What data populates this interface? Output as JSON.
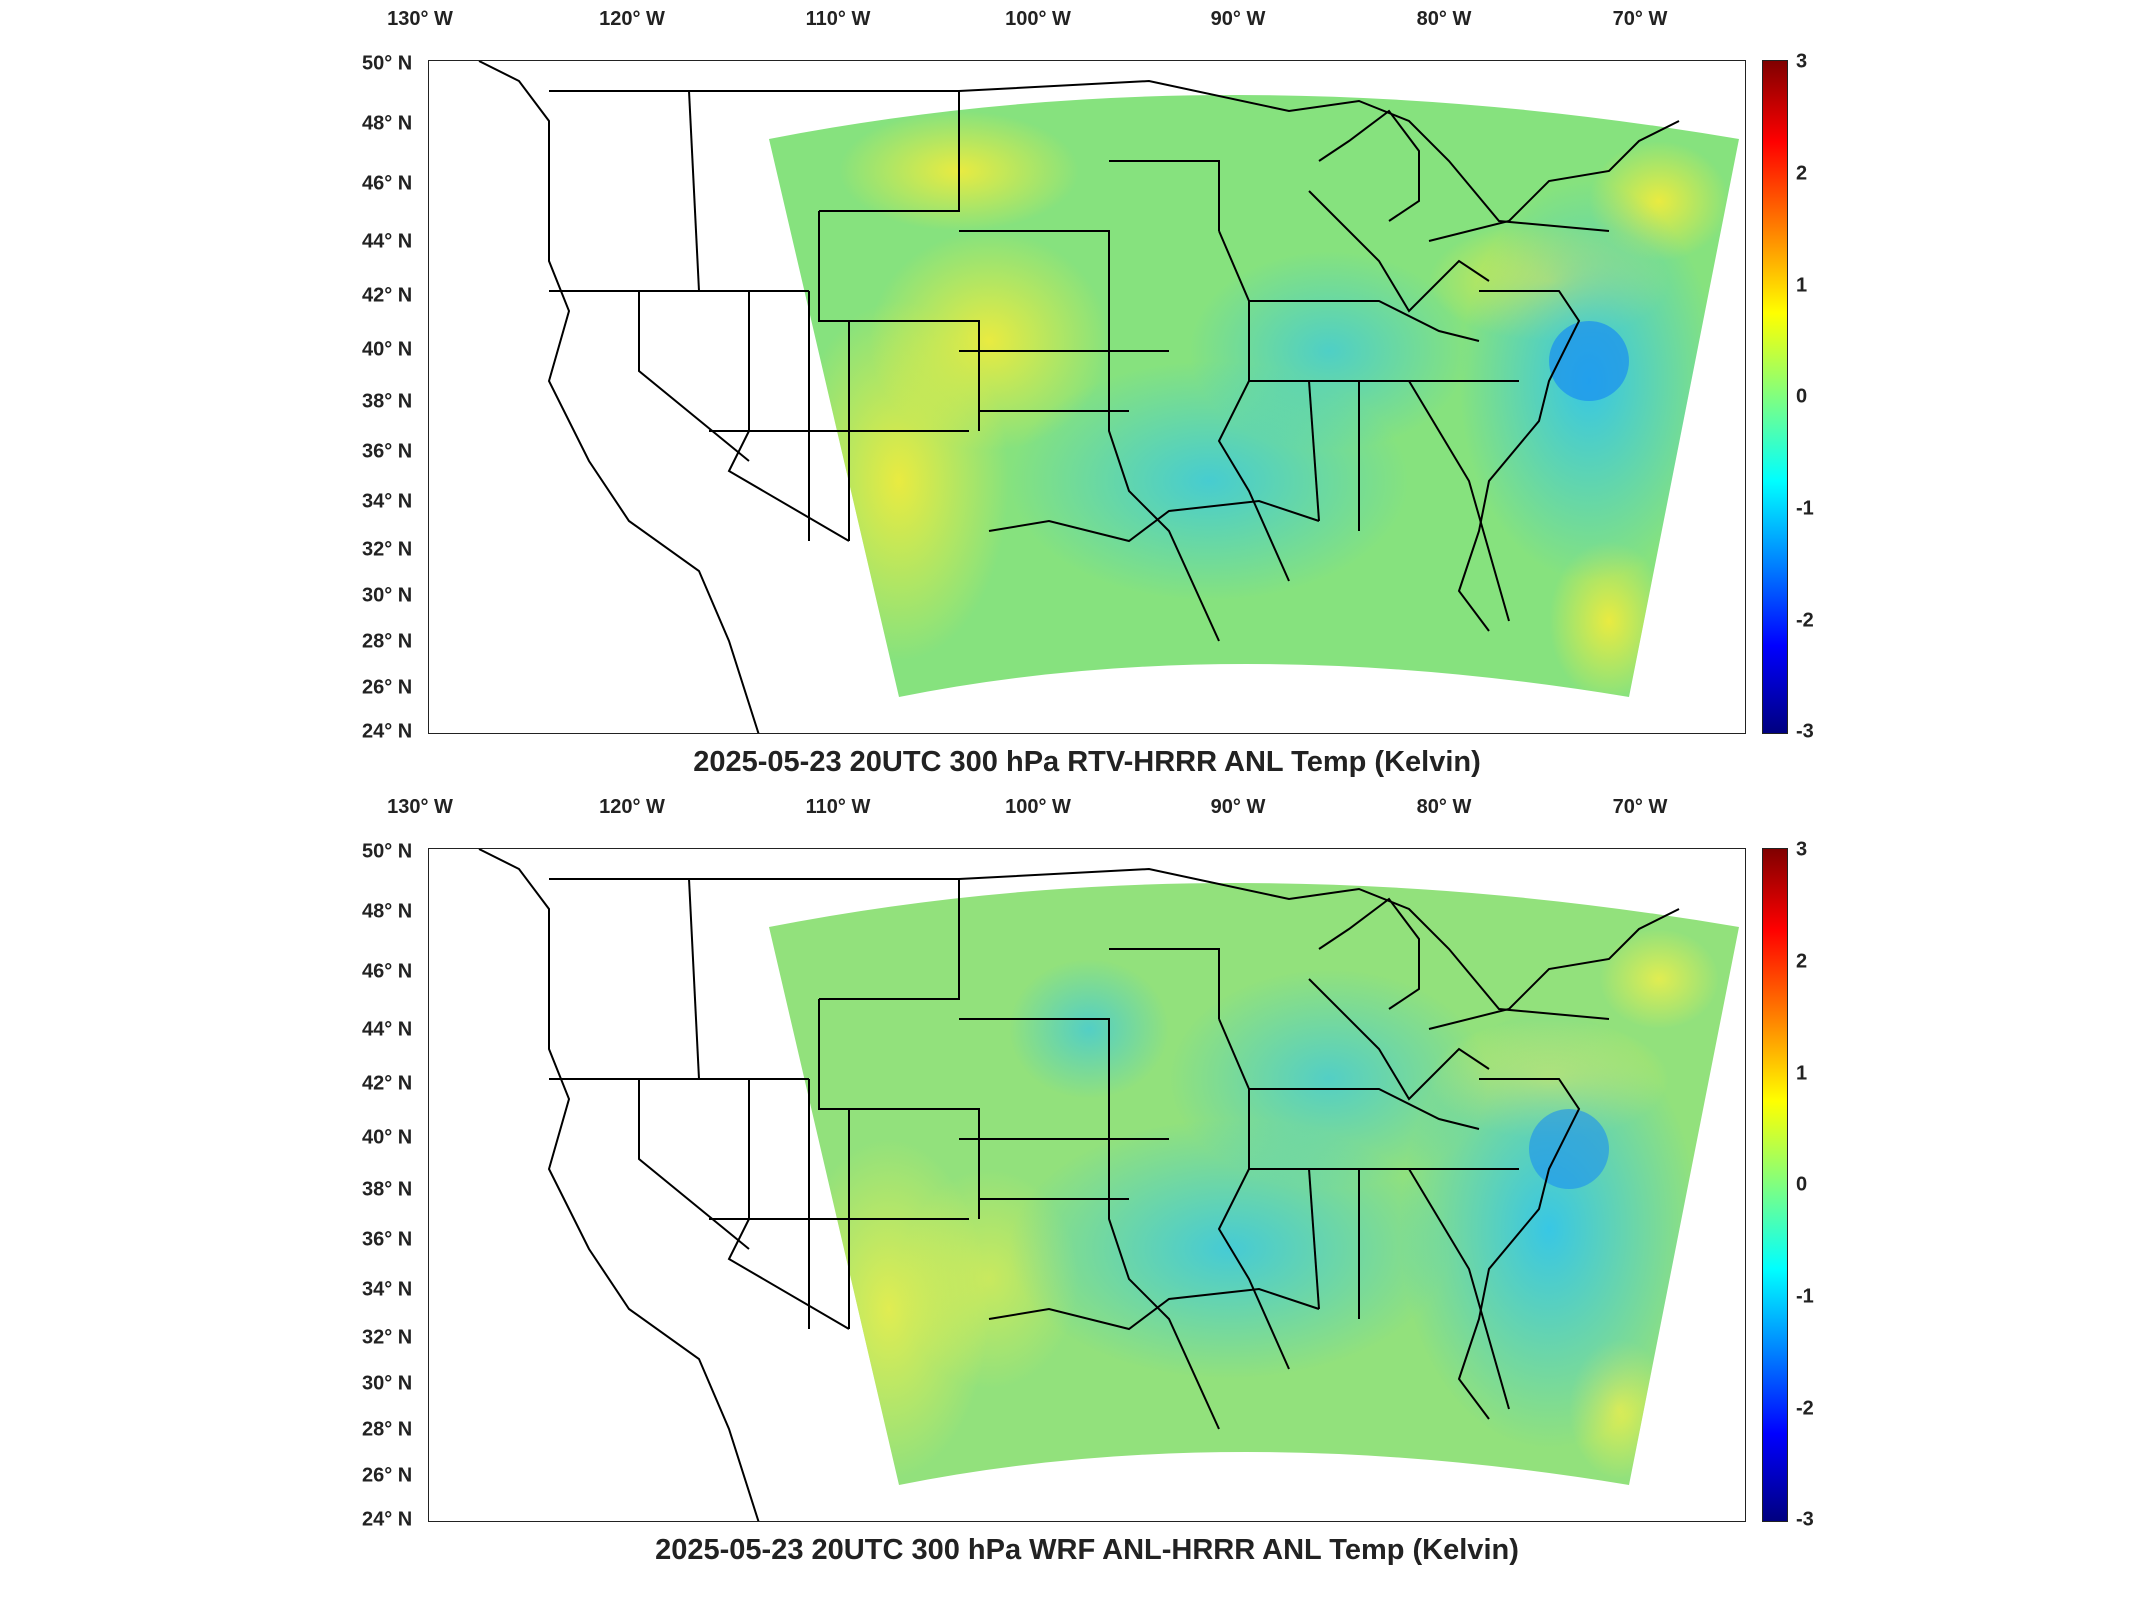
{
  "panels": [
    {
      "title": "2025-05-23 20UTC 300 hPa RTV-HRRR ANL Temp (Kelvin)",
      "chart_data": {
        "type": "heatmap",
        "description_of_field": "",
        "colorbar": {
          "min": -3,
          "max": 3,
          "ticks": [
            "3",
            "2",
            "1",
            "0",
            "-1",
            "-2",
            "-3"
          ],
          "colormap": "jet"
        },
        "lon_ticks": [
          "130° W",
          "120° W",
          "110° W",
          "100° W",
          "90° W",
          "80° W",
          "70° W"
        ],
        "lat_ticks": [
          "50° N",
          "48° N",
          "46° N",
          "44° N",
          "42° N",
          "40° N",
          "38° N",
          "36° N",
          "34° N",
          "32° N",
          "30° N",
          "28° N",
          "26° N",
          "24° N"
        ]
      }
    },
    {
      "title": "2025-05-23 20UTC 300 hPa WRF ANL-HRRR ANL Temp (Kelvin)",
      "chart_data": {
        "type": "heatmap",
        "description_of_field": "",
        "colorbar": {
          "min": -3,
          "max": 3,
          "ticks": [
            "3",
            "2",
            "1",
            "0",
            "-1",
            "-2",
            "-3"
          ],
          "colormap": "jet"
        },
        "lon_ticks": [
          "130° W",
          "120° W",
          "110° W",
          "100° W",
          "90° W",
          "80° W",
          "70° W"
        ],
        "lat_ticks": [
          "50° N",
          "48° N",
          "46° N",
          "44° N",
          "42° N",
          "40° N",
          "38° N",
          "36° N",
          "34° N",
          "32° N",
          "30° N",
          "28° N",
          "26° N",
          "24° N"
        ]
      }
    }
  ],
  "colors": {
    "field_base": "#7fe08a",
    "field_warm": "#e6f04a",
    "field_cool": "#4fd6f0",
    "border": "#000000"
  }
}
